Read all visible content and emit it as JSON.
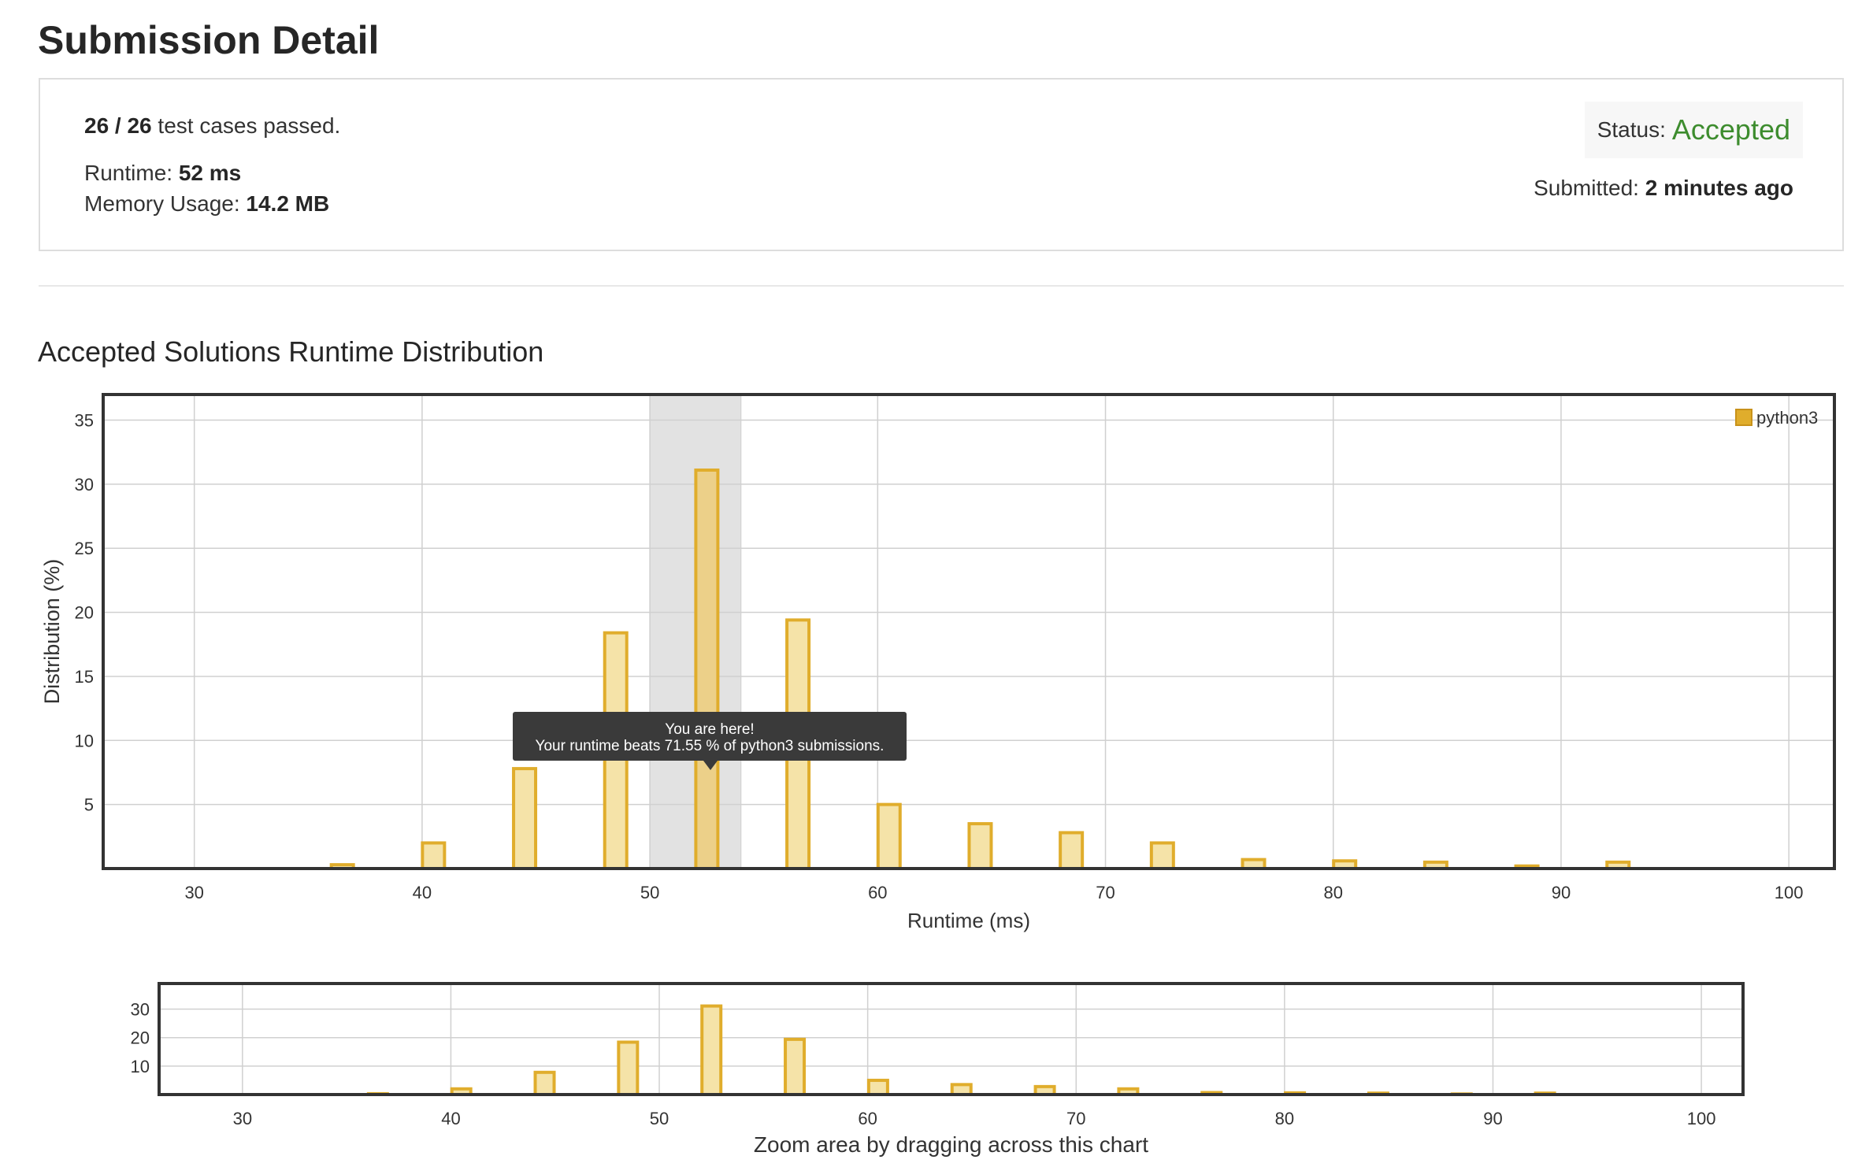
{
  "page": {
    "title": "Submission Detail"
  },
  "summary": {
    "passed": "26 / 26",
    "passed_suffix": "test cases passed.",
    "runtime_label": "Runtime:",
    "runtime_value": "52 ms",
    "memory_label": "Memory Usage:",
    "memory_value": "14.2 MB",
    "status_label": "Status:",
    "status_value": "Accepted",
    "submitted_label": "Submitted:",
    "submitted_value": "2 minutes ago"
  },
  "colors": {
    "accent": "#3d8c2e",
    "bar_fill": "#f5e3a8",
    "bar_stroke": "#e0ad2c",
    "highlight": "#e2e2e2"
  },
  "section": {
    "title": "Accepted Solutions Runtime Distribution"
  },
  "tooltip": {
    "line1": "You are here!",
    "line2": "Your runtime beats 71.55 % of python3 submissions."
  },
  "chart_data": [
    {
      "type": "bar",
      "xlabel": "Runtime (ms)",
      "ylabel": "Distribution (%)",
      "xlim": [
        26,
        102
      ],
      "ylim": [
        0,
        37
      ],
      "xticks": [
        30,
        40,
        50,
        60,
        70,
        80,
        90,
        100
      ],
      "yticks": [
        5,
        10,
        15,
        20,
        25,
        30,
        35
      ],
      "highlight_range": [
        50,
        54
      ],
      "legend": {
        "position": "top-right",
        "entries": [
          "python3"
        ]
      },
      "series": [
        {
          "name": "python3",
          "x": [
            36.5,
            40.5,
            44.5,
            48.5,
            52.5,
            56.5,
            60.5,
            64.5,
            68.5,
            72.5,
            76.5,
            80.5,
            84.5,
            88.5,
            92.5
          ],
          "values": [
            0.3,
            2.0,
            7.8,
            18.4,
            31.1,
            19.4,
            5.0,
            3.5,
            2.8,
            2.0,
            0.7,
            0.6,
            0.5,
            0.2,
            0.5
          ]
        }
      ]
    },
    {
      "type": "bar",
      "xlabel": "Zoom area by dragging across this chart",
      "xlim": [
        26,
        102
      ],
      "ylim": [
        0,
        39
      ],
      "xticks": [
        30,
        40,
        50,
        60,
        70,
        80,
        90,
        100
      ],
      "yticks": [
        10,
        20,
        30
      ],
      "series": [
        {
          "x": [
            36.5,
            40.5,
            44.5,
            48.5,
            52.5,
            56.5,
            60.5,
            64.5,
            68.5,
            72.5,
            76.5,
            80.5,
            84.5,
            88.5,
            92.5
          ],
          "values": [
            0.3,
            2.0,
            7.8,
            18.4,
            31.1,
            19.4,
            5.0,
            3.5,
            2.8,
            2.0,
            0.7,
            0.6,
            0.5,
            0.2,
            0.5
          ]
        }
      ]
    }
  ]
}
